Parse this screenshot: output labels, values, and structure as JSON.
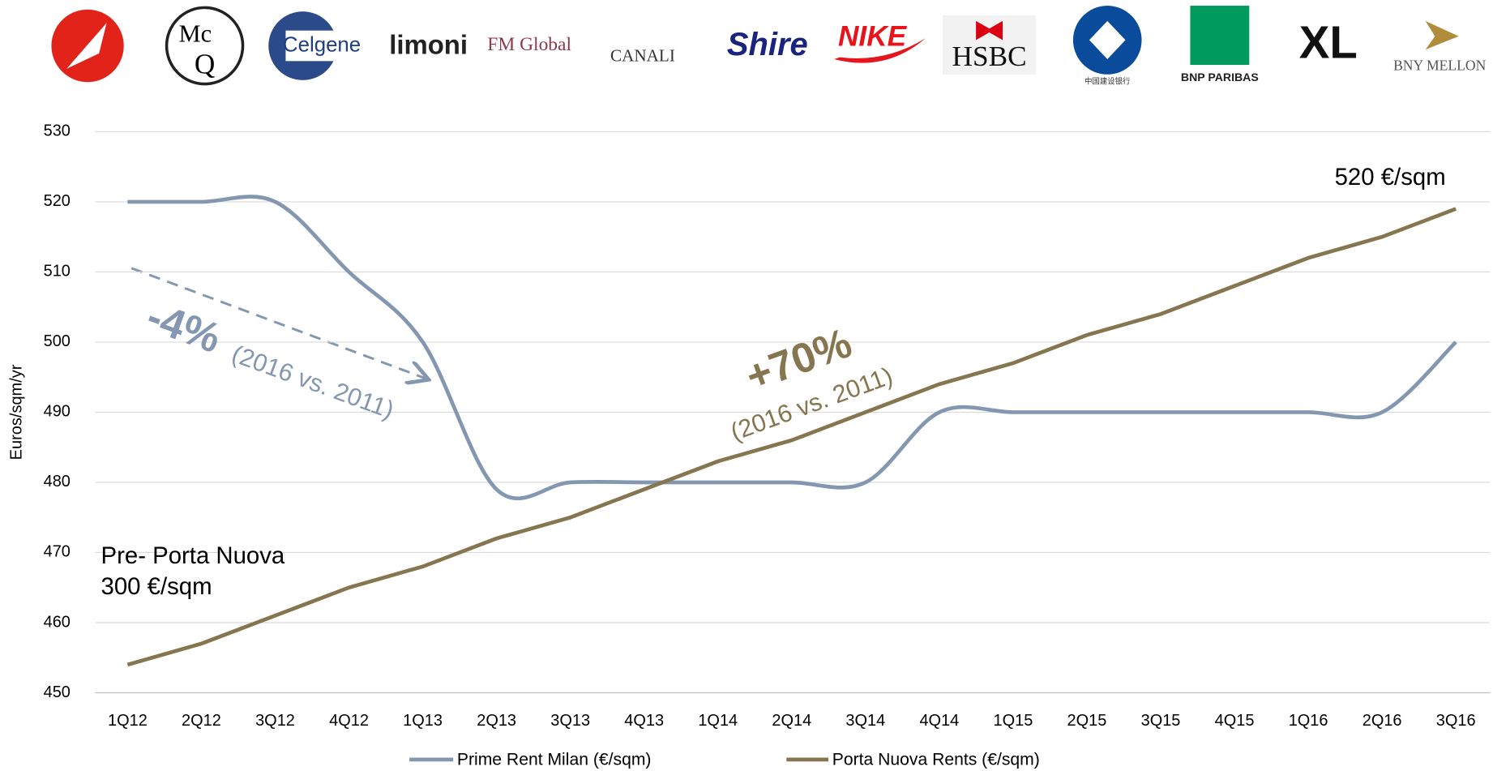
{
  "logos": [
    "Mc",
    "Q",
    "Celgene",
    "limoni",
    "FM Global",
    "CANALI",
    "Shire",
    "NIKE",
    "HSBC",
    "中国建设银行",
    "BNP PARIBAS",
    "XL",
    "BNY MELLON"
  ],
  "chart_data": {
    "type": "line",
    "y_label": "Euros/sqm/yr",
    "categories": [
      "1Q12",
      "2Q12",
      "3Q12",
      "4Q12",
      "1Q13",
      "2Q13",
      "3Q13",
      "4Q13",
      "1Q14",
      "2Q14",
      "3Q14",
      "4Q14",
      "1Q15",
      "2Q15",
      "3Q15",
      "4Q15",
      "1Q16",
      "2Q16",
      "3Q16"
    ],
    "series": [
      {
        "name": "Prime Rent Milan (€/sqm)",
        "color": "#8497b0",
        "values": [
          520,
          520,
          520,
          510,
          500,
          479,
          480,
          480,
          480,
          480,
          480,
          490,
          490,
          490,
          490,
          490,
          490,
          490,
          500
        ]
      },
      {
        "name": "Porta Nuova Rents (€/sqm)",
        "color": "#857650",
        "values": [
          454,
          457,
          461,
          465,
          468,
          472,
          475,
          479,
          483,
          486,
          490,
          494,
          497,
          501,
          504,
          508,
          512,
          515,
          519
        ]
      }
    ],
    "ylim": [
      450,
      530
    ],
    "yticks": [
      450,
      460,
      470,
      480,
      490,
      500,
      510,
      520,
      530
    ],
    "grid": true,
    "annotations": [
      {
        "text": "-4%",
        "color": "#8497b0"
      },
      {
        "text": "(2016 vs. 2011)",
        "color": "#8497b0"
      },
      {
        "text": "+70%",
        "color": "#857650"
      },
      {
        "text": "(2016 vs. 2011)",
        "color": "#857650"
      },
      {
        "text": "Pre- Porta Nuova",
        "color": "#000000"
      },
      {
        "text": "300 €/sqm",
        "color": "#000000"
      },
      {
        "text": "520 €/sqm",
        "color": "#000000"
      }
    ]
  }
}
